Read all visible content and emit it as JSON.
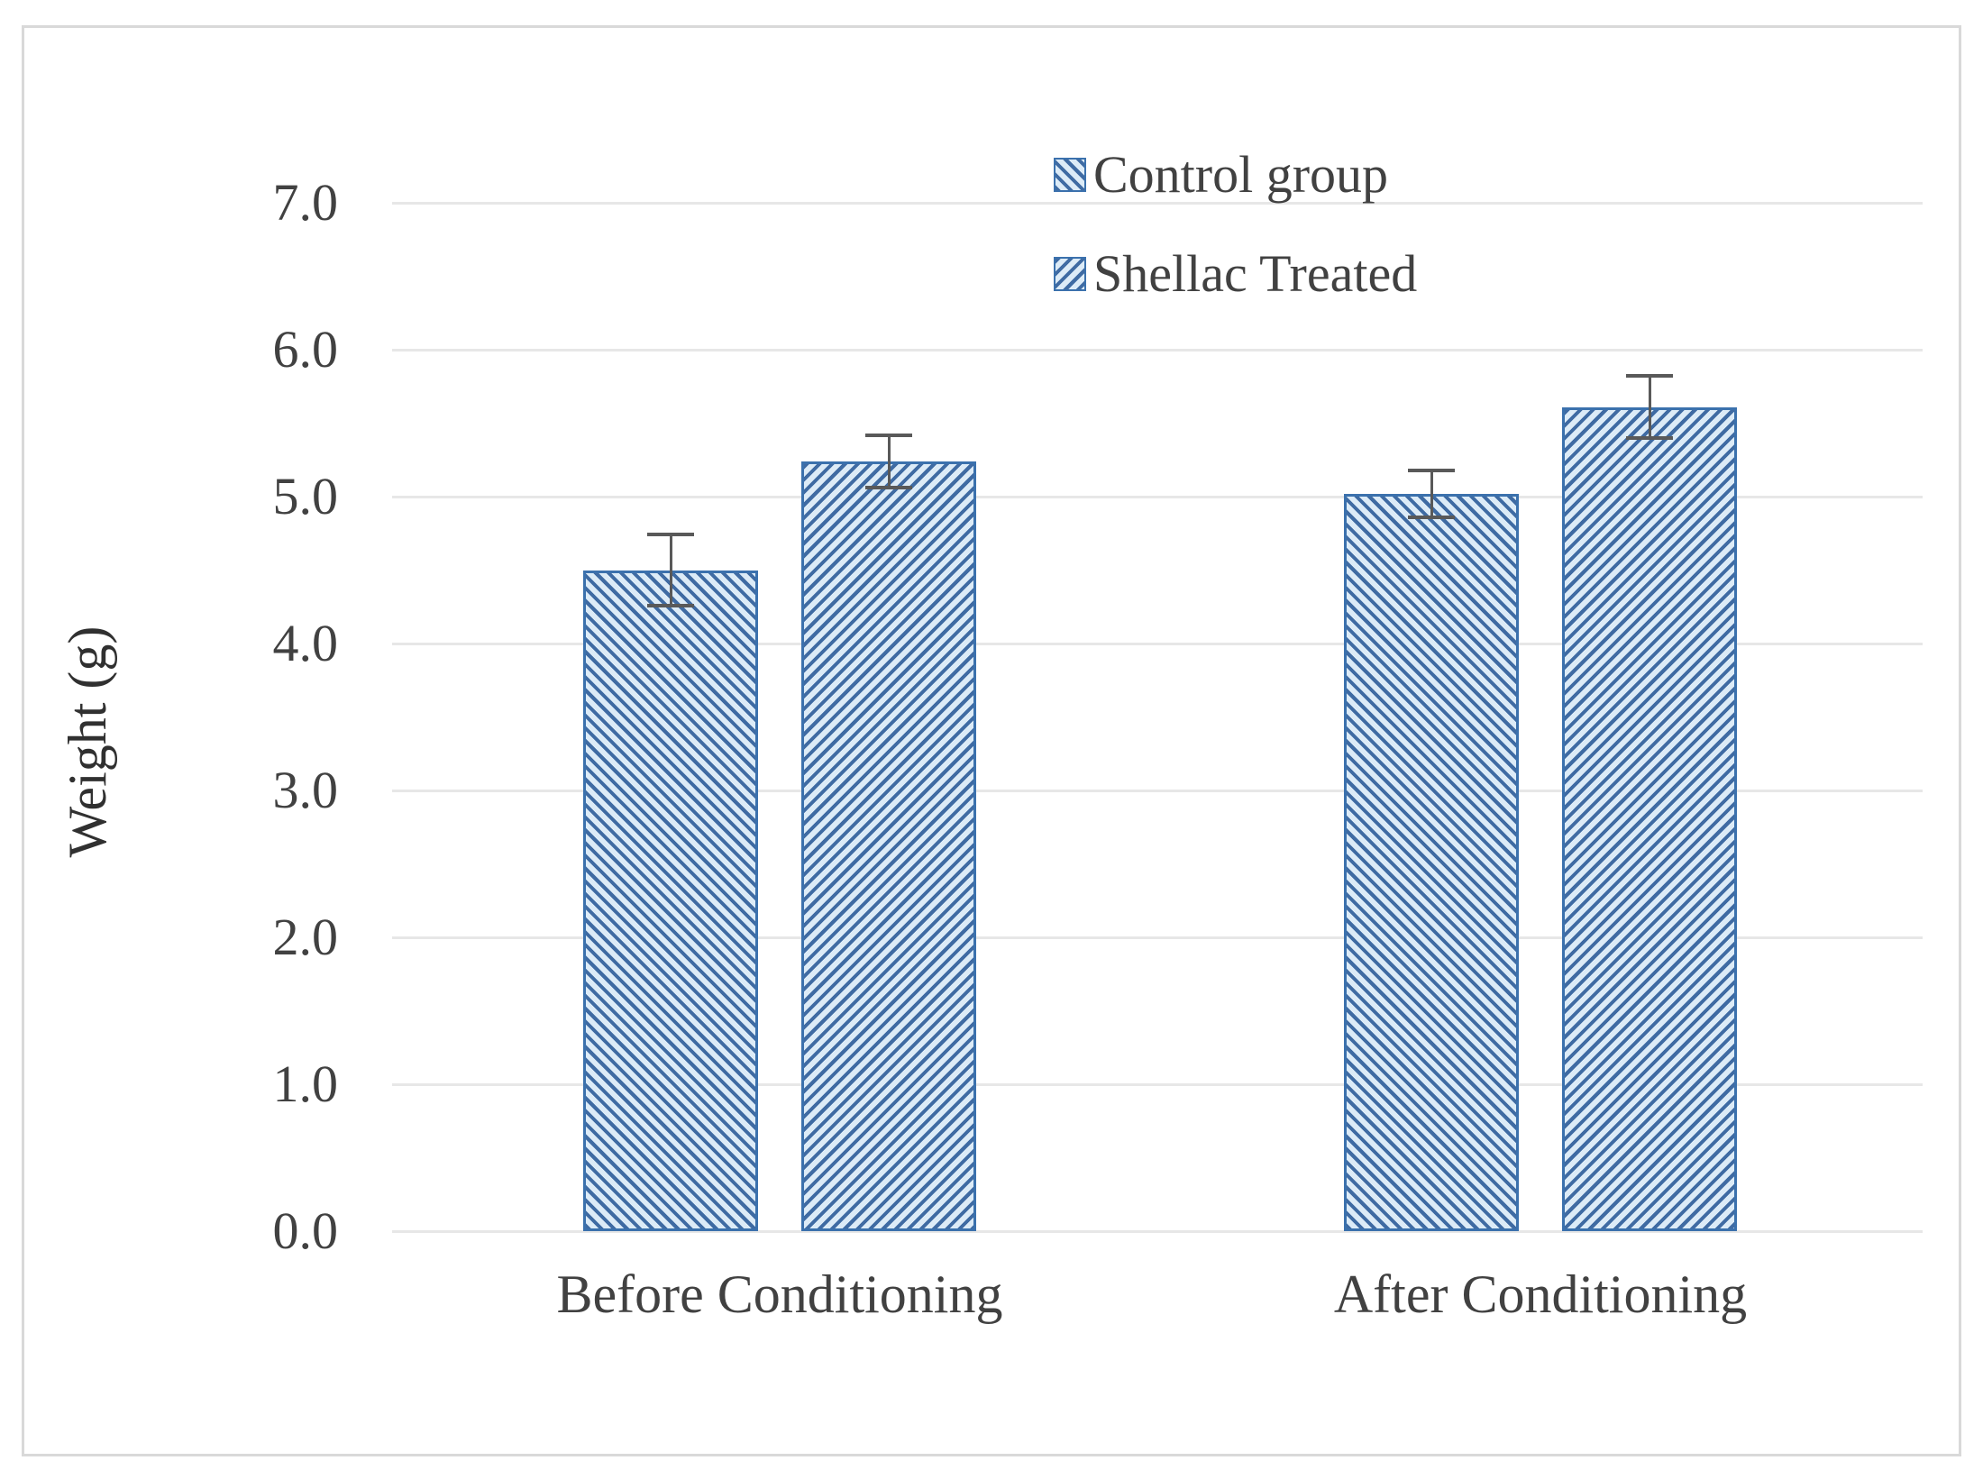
{
  "figure": {
    "background": "#ffffff",
    "border_color": "#d9d9d9"
  },
  "colors": {
    "hatch_dark_blue": "#3f6ba3",
    "hatch_light_blue": "#dcebf7",
    "bar_border_blue": "#3b71ad",
    "gridline_gray": "#e7e7e7",
    "text_gray": "#414141",
    "error_bar_gray": "#595959"
  },
  "chart_data": {
    "type": "bar",
    "title": "",
    "categories": [
      "Before Conditioning",
      "After Conditioning"
    ],
    "series": [
      {
        "name": "Control group",
        "values": [
          4.5,
          5.02
        ],
        "errors": [
          0.24,
          0.16
        ],
        "hatch": "diagonal-down"
      },
      {
        "name": "Shellac Treated",
        "values": [
          5.24,
          5.61
        ],
        "errors": [
          0.18,
          0.21
        ],
        "hatch": "diagonal-up"
      }
    ],
    "xlabel": "",
    "ylabel": "Weight (g)",
    "ylim": [
      0.0,
      7.0
    ],
    "ytick_step": 1.0,
    "ytick_labels": [
      "0.0",
      "1.0",
      "2.0",
      "3.0",
      "4.0",
      "5.0",
      "6.0",
      "7.0"
    ],
    "grid": true,
    "error_bars": true,
    "legend_position": "top-center",
    "legend_entries": [
      "Control group",
      "Shellac Treated"
    ]
  }
}
